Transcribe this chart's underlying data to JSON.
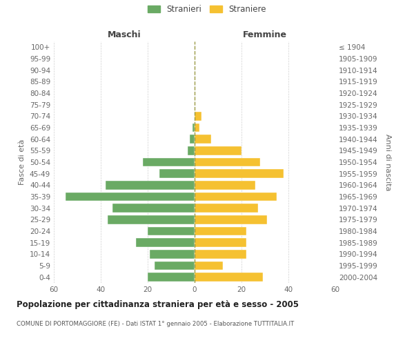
{
  "age_groups": [
    "0-4",
    "5-9",
    "10-14",
    "15-19",
    "20-24",
    "25-29",
    "30-34",
    "35-39",
    "40-44",
    "45-49",
    "50-54",
    "55-59",
    "60-64",
    "65-69",
    "70-74",
    "75-79",
    "80-84",
    "85-89",
    "90-94",
    "95-99",
    "100+"
  ],
  "birth_years": [
    "2000-2004",
    "1995-1999",
    "1990-1994",
    "1985-1989",
    "1980-1984",
    "1975-1979",
    "1970-1974",
    "1965-1969",
    "1960-1964",
    "1955-1959",
    "1950-1954",
    "1945-1949",
    "1940-1944",
    "1935-1939",
    "1930-1934",
    "1925-1929",
    "1920-1924",
    "1915-1919",
    "1910-1914",
    "1905-1909",
    "≤ 1904"
  ],
  "males": [
    20,
    17,
    19,
    25,
    20,
    37,
    35,
    55,
    38,
    15,
    22,
    3,
    2,
    1,
    0,
    0,
    0,
    0,
    0,
    0,
    0
  ],
  "females": [
    29,
    12,
    22,
    22,
    22,
    31,
    27,
    35,
    26,
    38,
    28,
    20,
    7,
    2,
    3,
    0,
    0,
    0,
    0,
    0,
    0
  ],
  "male_color": "#6aaa64",
  "female_color": "#f5c131",
  "title": "Popolazione per cittadinanza straniera per età e sesso - 2005",
  "subtitle": "COMUNE DI PORTOMAGGIORE (FE) - Dati ISTAT 1° gennaio 2005 - Elaborazione TUTTITALIA.IT",
  "xlabel_left": "Maschi",
  "xlabel_right": "Femmine",
  "ylabel_left": "Fasce di età",
  "ylabel_right": "Anni di nascita",
  "legend_male": "Stranieri",
  "legend_female": "Straniere",
  "xlim": 60,
  "background_color": "#ffffff",
  "grid_color": "#cccccc",
  "text_color": "#666666",
  "bar_edge_color": "#ffffff"
}
